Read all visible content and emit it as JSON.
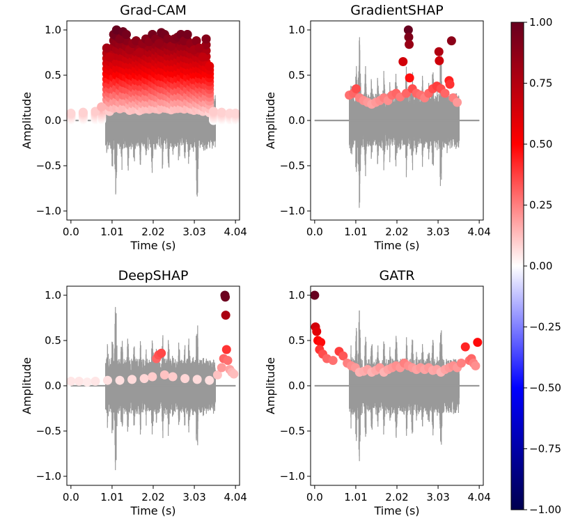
{
  "colors": {
    "waveform": "#999999",
    "colormap": [
      "#67001f",
      "#ff0000",
      "#ffffff",
      "#0000ff",
      "#00004f"
    ]
  },
  "colorbar": {
    "min": -1.0,
    "max": 1.0,
    "ticks": [
      "1.00",
      "0.75",
      "0.50",
      "0.25",
      "0.00",
      "−0.25",
      "−0.50",
      "−0.75",
      "−1.00"
    ],
    "tick_values": [
      1.0,
      0.75,
      0.5,
      0.25,
      0.0,
      -0.25,
      -0.5,
      -0.75,
      -1.0
    ]
  },
  "chart_data": [
    {
      "type": "scatter",
      "title": "Grad-CAM",
      "xlabel": "Time (s)",
      "ylabel": "Amplitude",
      "xlim": [
        -0.1,
        4.14
      ],
      "ylim": [
        -1.1,
        1.1
      ],
      "xticks": [
        0.0,
        1.01,
        2.02,
        3.03,
        4.04
      ],
      "xtick_labels": [
        "0.0",
        "1.01",
        "2.02",
        "3.03",
        "4.04"
      ],
      "yticks": [
        1.0,
        0.5,
        0.0,
        -0.5,
        -1.0
      ],
      "ytick_labels": [
        "1.0",
        "0.5",
        "0.0",
        "−0.5",
        "−1.0"
      ],
      "waveform": true,
      "points": [
        [
          0.0,
          0.08
        ],
        [
          0.3,
          0.09
        ],
        [
          0.6,
          0.1
        ],
        [
          0.75,
          0.15
        ],
        [
          0.88,
          0.8
        ],
        [
          0.95,
          0.7
        ],
        [
          1.05,
          0.95
        ],
        [
          1.12,
          1.0
        ],
        [
          1.2,
          0.9
        ],
        [
          1.28,
          0.98
        ],
        [
          1.36,
          0.95
        ],
        [
          1.44,
          0.78
        ],
        [
          1.52,
          0.85
        ],
        [
          1.6,
          0.88
        ],
        [
          1.68,
          0.75
        ],
        [
          1.76,
          0.85
        ],
        [
          1.84,
          0.9
        ],
        [
          1.92,
          0.87
        ],
        [
          2.0,
          0.95
        ],
        [
          2.08,
          0.9
        ],
        [
          2.16,
          0.85
        ],
        [
          2.22,
          0.97
        ],
        [
          2.3,
          0.95
        ],
        [
          2.38,
          0.9
        ],
        [
          2.46,
          0.82
        ],
        [
          2.54,
          0.9
        ],
        [
          2.62,
          0.92
        ],
        [
          2.7,
          0.95
        ],
        [
          2.78,
          0.88
        ],
        [
          2.86,
          0.95
        ],
        [
          2.94,
          0.85
        ],
        [
          3.02,
          0.78
        ],
        [
          3.08,
          0.88
        ],
        [
          3.15,
          0.8
        ],
        [
          3.24,
          0.7
        ],
        [
          3.32,
          0.9
        ],
        [
          3.4,
          0.6
        ],
        [
          3.5,
          0.1
        ],
        [
          3.7,
          0.09
        ],
        [
          3.9,
          0.08
        ],
        [
          4.04,
          0.08
        ]
      ]
    },
    {
      "type": "scatter",
      "title": "GradientSHAP",
      "xlabel": "Time (s)",
      "ylabel": "Amplitude",
      "xlim": [
        -0.1,
        4.14
      ],
      "ylim": [
        -1.1,
        1.1
      ],
      "xticks": [
        0.0,
        1.01,
        2.02,
        3.03,
        4.04
      ],
      "xtick_labels": [
        "0.0",
        "1.01",
        "2.02",
        "3.03",
        "4.04"
      ],
      "yticks": [
        1.0,
        0.5,
        0.0,
        -0.5,
        -1.0
      ],
      "ytick_labels": [
        "1.0",
        "0.5",
        "0.0",
        "−0.5",
        "−1.0"
      ],
      "waveform": true,
      "points": [
        [
          0.85,
          0.28
        ],
        [
          0.95,
          0.3
        ],
        [
          1.02,
          0.35
        ],
        [
          1.1,
          0.25
        ],
        [
          1.2,
          0.22
        ],
        [
          1.3,
          0.2
        ],
        [
          1.4,
          0.18
        ],
        [
          1.5,
          0.2
        ],
        [
          1.6,
          0.22
        ],
        [
          1.7,
          0.25
        ],
        [
          1.8,
          0.22
        ],
        [
          1.9,
          0.28
        ],
        [
          2.0,
          0.3
        ],
        [
          2.1,
          0.26
        ],
        [
          2.17,
          0.65
        ],
        [
          2.25,
          0.3
        ],
        [
          2.3,
          1.0
        ],
        [
          2.31,
          0.92
        ],
        [
          2.32,
          0.84
        ],
        [
          2.33,
          0.47
        ],
        [
          2.4,
          0.35
        ],
        [
          2.5,
          0.3
        ],
        [
          2.6,
          0.28
        ],
        [
          2.7,
          0.25
        ],
        [
          2.8,
          0.3
        ],
        [
          2.9,
          0.35
        ],
        [
          3.0,
          0.38
        ],
        [
          3.05,
          0.76
        ],
        [
          3.06,
          0.66
        ],
        [
          3.1,
          0.35
        ],
        [
          3.2,
          0.3
        ],
        [
          3.3,
          0.44
        ],
        [
          3.32,
          0.4
        ],
        [
          3.36,
          0.88
        ],
        [
          3.4,
          0.25
        ],
        [
          3.5,
          0.2
        ]
      ]
    },
    {
      "type": "scatter",
      "title": "DeepSHAP",
      "xlabel": "Time (s)",
      "ylabel": "Amplitude",
      "xlim": [
        -0.1,
        4.14
      ],
      "ylim": [
        -1.1,
        1.1
      ],
      "xticks": [
        0.0,
        1.01,
        2.02,
        3.03,
        4.04
      ],
      "xtick_labels": [
        "0.0",
        "1.01",
        "2.02",
        "3.03",
        "4.04"
      ],
      "yticks": [
        1.0,
        0.5,
        0.0,
        -0.5,
        -1.0
      ],
      "ytick_labels": [
        "1.0",
        "0.5",
        "0.0",
        "−0.5",
        "−1.0"
      ],
      "waveform": true,
      "points": [
        [
          0.0,
          0.05
        ],
        [
          0.2,
          0.05
        ],
        [
          0.4,
          0.04
        ],
        [
          0.6,
          0.05
        ],
        [
          0.9,
          0.06
        ],
        [
          1.2,
          0.06
        ],
        [
          1.5,
          0.07
        ],
        [
          1.8,
          0.08
        ],
        [
          2.0,
          0.1
        ],
        [
          2.1,
          0.3
        ],
        [
          2.15,
          0.34
        ],
        [
          2.22,
          0.36
        ],
        [
          2.3,
          0.12
        ],
        [
          2.5,
          0.1
        ],
        [
          2.8,
          0.08
        ],
        [
          3.1,
          0.07
        ],
        [
          3.4,
          0.06
        ],
        [
          3.6,
          0.12
        ],
        [
          3.7,
          0.2
        ],
        [
          3.75,
          0.3
        ],
        [
          3.78,
          1.0
        ],
        [
          3.79,
          0.98
        ],
        [
          3.8,
          0.78
        ],
        [
          3.82,
          0.4
        ],
        [
          3.85,
          0.28
        ],
        [
          3.9,
          0.18
        ],
        [
          3.95,
          0.15
        ],
        [
          4.0,
          0.13
        ]
      ]
    },
    {
      "type": "scatter",
      "title": "GATR",
      "xlabel": "Time (s)",
      "ylabel": "Amplitude",
      "xlim": [
        -0.1,
        4.14
      ],
      "ylim": [
        -1.1,
        1.1
      ],
      "xticks": [
        0.0,
        1.01,
        2.02,
        3.03,
        4.04
      ],
      "xtick_labels": [
        "0.0",
        "1.01",
        "2.02",
        "3.03",
        "4.04"
      ],
      "yticks": [
        1.0,
        0.5,
        0.0,
        -0.5,
        -1.0
      ],
      "ytick_labels": [
        "1.0",
        "0.5",
        "0.0",
        "−0.5",
        "−1.0"
      ],
      "waveform": true,
      "points": [
        [
          0.0,
          1.0
        ],
        [
          0.02,
          0.65
        ],
        [
          0.05,
          0.6
        ],
        [
          0.08,
          0.5
        ],
        [
          0.15,
          0.48
        ],
        [
          0.12,
          0.4
        ],
        [
          0.2,
          0.35
        ],
        [
          0.3,
          0.3
        ],
        [
          0.45,
          0.28
        ],
        [
          0.6,
          0.38
        ],
        [
          0.7,
          0.33
        ],
        [
          0.8,
          0.25
        ],
        [
          0.9,
          0.22
        ],
        [
          1.0,
          0.2
        ],
        [
          1.1,
          0.15
        ],
        [
          1.2,
          0.16
        ],
        [
          1.3,
          0.18
        ],
        [
          1.4,
          0.15
        ],
        [
          1.5,
          0.17
        ],
        [
          1.6,
          0.2
        ],
        [
          1.7,
          0.15
        ],
        [
          1.8,
          0.18
        ],
        [
          1.9,
          0.2
        ],
        [
          2.0,
          0.22
        ],
        [
          2.1,
          0.2
        ],
        [
          2.2,
          0.25
        ],
        [
          2.3,
          0.22
        ],
        [
          2.4,
          0.2
        ],
        [
          2.5,
          0.18
        ],
        [
          2.6,
          0.2
        ],
        [
          2.7,
          0.18
        ],
        [
          2.8,
          0.2
        ],
        [
          2.9,
          0.17
        ],
        [
          3.0,
          0.18
        ],
        [
          3.1,
          0.15
        ],
        [
          3.2,
          0.18
        ],
        [
          3.3,
          0.2
        ],
        [
          3.4,
          0.22
        ],
        [
          3.5,
          0.2
        ],
        [
          3.6,
          0.25
        ],
        [
          3.7,
          0.43
        ],
        [
          3.8,
          0.28
        ],
        [
          3.85,
          0.3
        ],
        [
          3.9,
          0.25
        ],
        [
          3.95,
          0.22
        ],
        [
          4.0,
          0.48
        ]
      ]
    }
  ]
}
